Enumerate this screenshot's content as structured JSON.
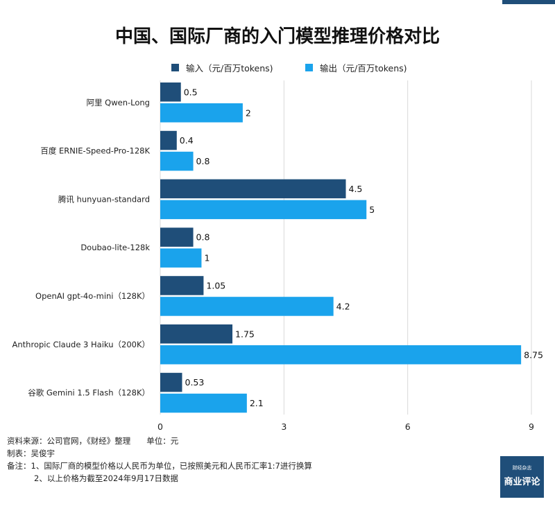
{
  "chart_data": {
    "type": "bar",
    "orientation": "horizontal",
    "title": "中国、国际厂商的入门模型推理价格对比",
    "categories": [
      "阿里 Qwen-Long",
      "百度 ERNIE-Speed-Pro-128K",
      "腾讯 hunyuan-standard",
      "Doubao-lite-128k",
      "OpenAI gpt-4o-mini（128K）",
      "Anthropic Claude 3 Haiku（200K）",
      "谷歌 Gemini 1.5 Flash（128K）"
    ],
    "series": [
      {
        "name": "输入（元/百万tokens)",
        "color": "#1f4e79",
        "values": [
          0.5,
          0.4,
          4.5,
          0.8,
          1.05,
          1.75,
          0.53
        ],
        "labels": [
          "0.5",
          "0.4",
          "4.5",
          "0.8",
          "1.05",
          "1.75",
          "0.53"
        ]
      },
      {
        "name": "输出（元/百万tokens)",
        "color": "#1aa3ec",
        "values": [
          2,
          0.8,
          5,
          1,
          4.2,
          8.75,
          2.1
        ],
        "labels": [
          "2",
          "0.8",
          "5",
          "1",
          "4.2",
          "8.75",
          "2.1"
        ]
      }
    ],
    "xlim": [
      0,
      9
    ],
    "xticks": [
      0,
      3,
      6,
      9
    ],
    "xlabel": "",
    "ylabel": "",
    "grid": true,
    "legend_position": "top"
  },
  "footer": {
    "source": "资料来源：公司官网，《财经》整理　　单位：元",
    "author": "制表：吴俊宇",
    "note_1": "备注：1、国际厂商的模型价格以人民币为单位，已按照美元和人民币汇率1:7进行换算",
    "note_2": "2、以上价格为截至2024年9月17日数据"
  },
  "logo": {
    "small_text": "财经杂志",
    "big_text": "商业评论"
  },
  "colors": {
    "input": "#1f4e79",
    "output": "#1aa3ec",
    "grid": "#d9d9d9"
  }
}
